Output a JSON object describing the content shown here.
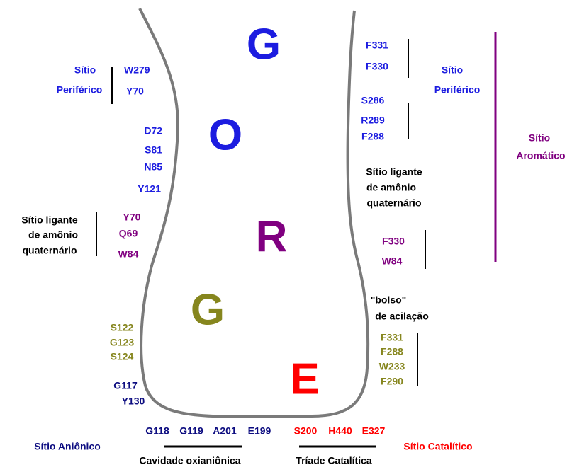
{
  "gorge_letters": [
    "G",
    "O",
    "R",
    "G",
    "E"
  ],
  "left": {
    "peripheral_site": {
      "label": [
        "Sítio",
        "Periférico"
      ],
      "residues": [
        "W279",
        "Y70"
      ]
    },
    "upper_residues": [
      "D72",
      "S81",
      "N85",
      "Y121"
    ],
    "quaternary_site": {
      "label": [
        "Sítio ligante",
        "de amônio",
        "quaternário"
      ],
      "residues": [
        "Y70",
        "Q69",
        "W84"
      ]
    },
    "oxyanion_residues": [
      "S122",
      "G123",
      "S124"
    ],
    "anionic_residues": [
      "G117",
      "Y130"
    ]
  },
  "right": {
    "peripheral_site": {
      "label": [
        "Sítio",
        "Periférico"
      ],
      "residues_top": [
        "F331",
        "F330"
      ],
      "residues_bottom": [
        "S286",
        "R289",
        "F288"
      ]
    },
    "quaternary_site": {
      "label": [
        "Sítio ligante",
        "de amônio",
        "quaternário"
      ],
      "residues": [
        "F330",
        "W84"
      ]
    },
    "aromatic_site": {
      "label": [
        "Sítio",
        "Aromático"
      ]
    },
    "acyl_pocket": {
      "label": [
        "\"bolso\"",
        "de acilação"
      ],
      "residues": [
        "F331",
        "F288",
        "W233",
        "F290"
      ]
    }
  },
  "bottom": {
    "anionic_residues": [
      "G118",
      "G119",
      "A201",
      "E199"
    ],
    "catalytic_residues": [
      "S200",
      "H440",
      "E327"
    ],
    "anionic_site": "Sítio Aniônico",
    "catalytic_site": "Sítio Catalítico",
    "oxyanion_hole": "Cavidade oxianiônica",
    "catalytic_triad": "Tríade Catalítica"
  }
}
